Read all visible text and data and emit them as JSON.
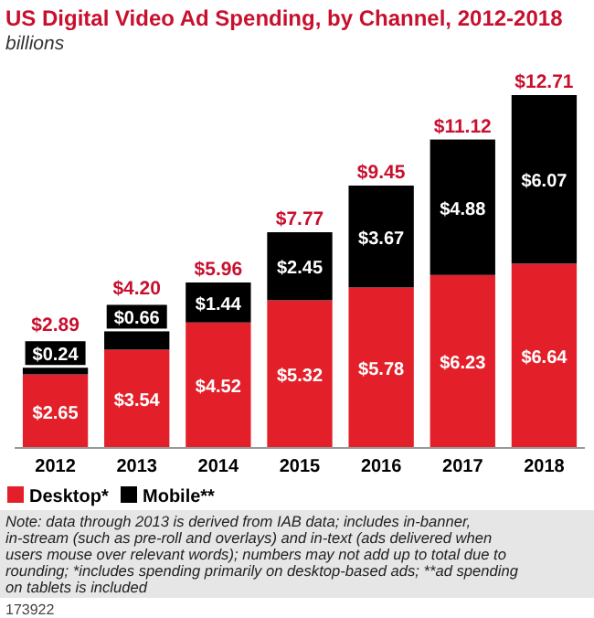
{
  "chart_data": {
    "type": "bar",
    "title": "US Digital Video Ad Spending, by Channel, 2012-2018",
    "subtitle": "billions",
    "categories": [
      "2012",
      "2013",
      "2014",
      "2015",
      "2016",
      "2017",
      "2018"
    ],
    "stacked": true,
    "data_labels": true,
    "legend": "bottom left",
    "series": [
      {
        "name": "Desktop*",
        "color": "#e3202a",
        "values": [
          2.65,
          3.54,
          4.52,
          5.32,
          5.78,
          6.23,
          6.64
        ],
        "value_labels": [
          "$2.65",
          "$3.54",
          "$4.52",
          "$5.32",
          "$5.78",
          "$6.23",
          "$6.64"
        ]
      },
      {
        "name": "Mobile**",
        "color": "#000000",
        "values": [
          0.24,
          0.66,
          1.44,
          2.45,
          3.67,
          4.88,
          6.07
        ],
        "value_labels": [
          "$0.24",
          "$0.66",
          "$1.44",
          "$2.45",
          "$3.67",
          "$4.88",
          "$6.07"
        ]
      }
    ],
    "totals": [
      "$2.89",
      "$4.20",
      "$5.96",
      "$7.77",
      "$9.45",
      "$11.12",
      "$12.71"
    ],
    "annotations": [
      "Note: data through 2013 is derived from IAB data; includes in-banner, in-stream (such as pre-roll and overlays) and in-text (ads delivered when users mouse over relevant words); numbers may not add up to total due to rounding; *includes spending primarily on desktop-based ads; **ad spending on tablets is included",
      "173922"
    ]
  }
}
